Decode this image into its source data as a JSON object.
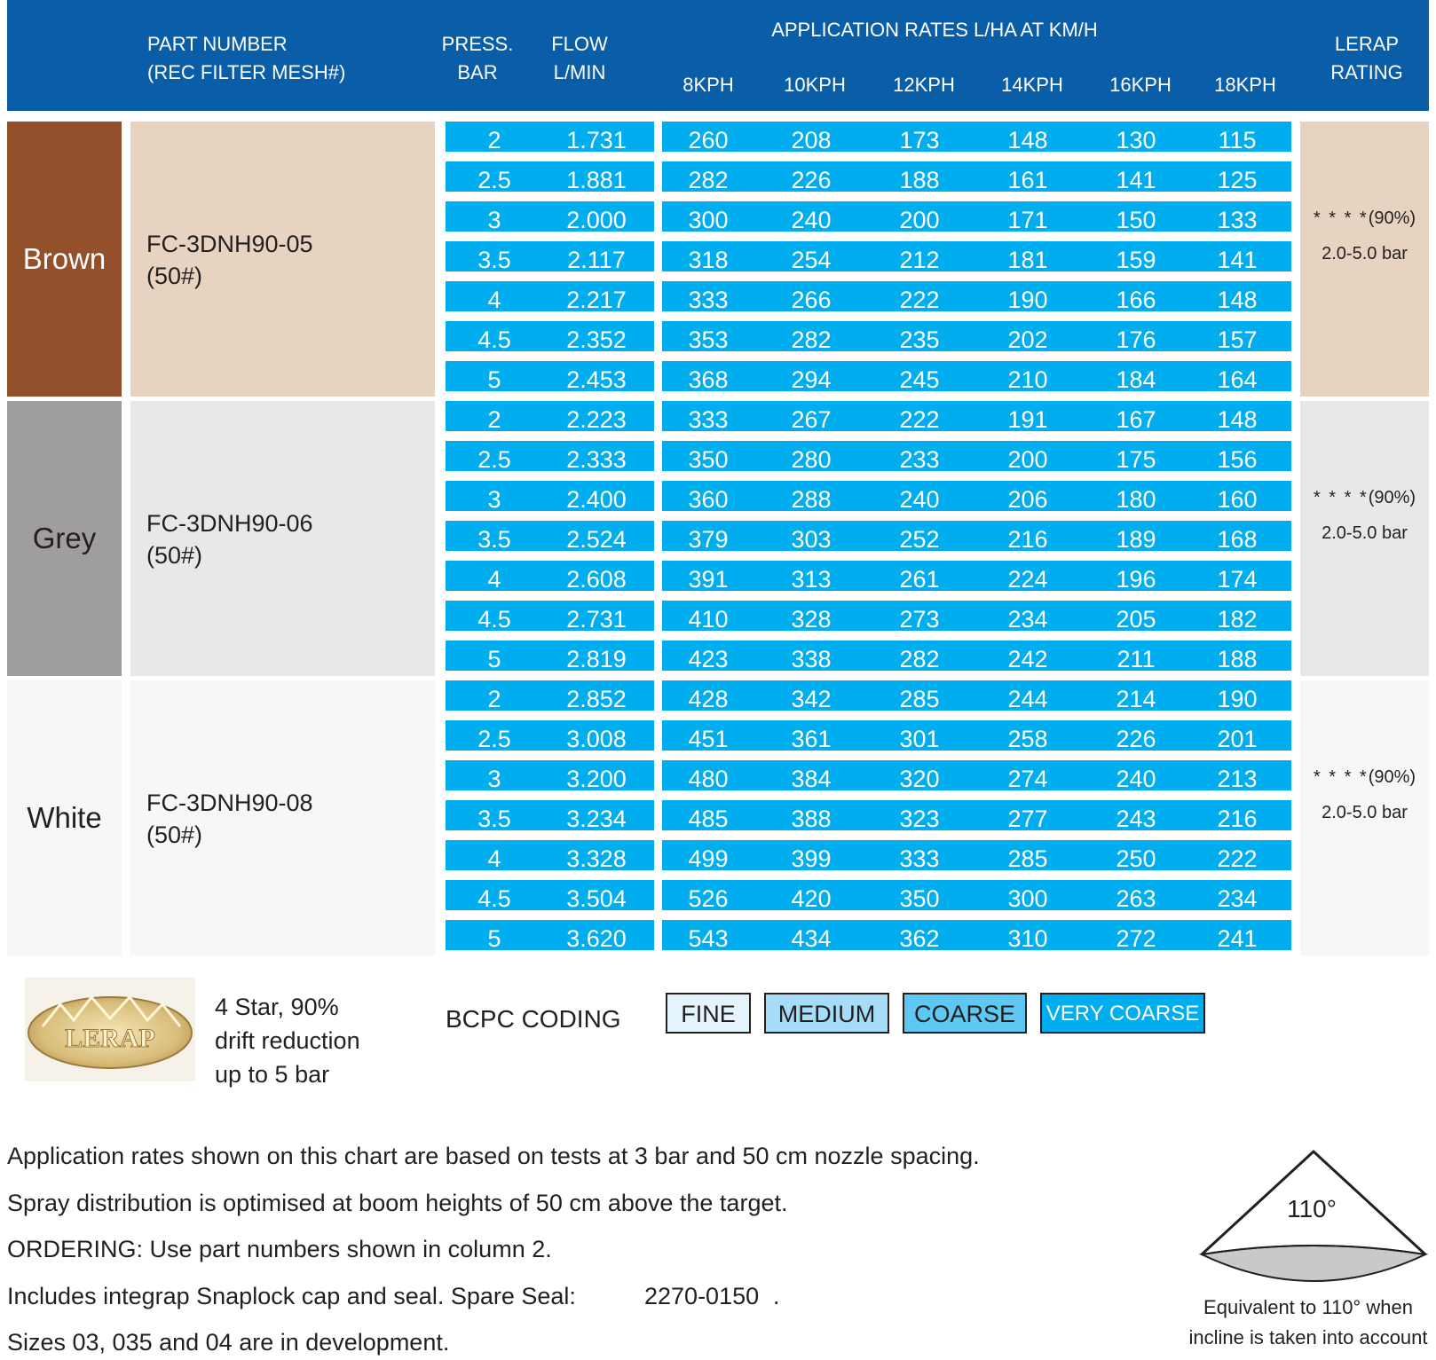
{
  "header": {
    "part_number": "PART NUMBER\n(REC FILTER MESH#)",
    "press": "PRESS.\nBAR",
    "flow": "FLOW\nL/MIN",
    "app_rates": "APPLICATION RATES L/HA AT KM/H",
    "speeds": [
      "8KPH",
      "10KPH",
      "12KPH",
      "14KPH",
      "16KPH",
      "18KPH"
    ],
    "lerap": "LERAP\nRATING"
  },
  "groups": [
    {
      "color_name": "Brown",
      "color_hex": "#93502a",
      "panel_hex": "#e8d2c0",
      "text_color": "#ffffff",
      "part": "FC-3DNH90-05\n(50#)",
      "lerap_stars": "* * * *",
      "lerap_pct": "(90%)",
      "lerap_range": "2.0-5.0 bar",
      "rows": [
        {
          "press": "2",
          "flow": "1.731",
          "rates": [
            "260",
            "208",
            "173",
            "148",
            "130",
            "115"
          ]
        },
        {
          "press": "2.5",
          "flow": "1.881",
          "rates": [
            "282",
            "226",
            "188",
            "161",
            "141",
            "125"
          ]
        },
        {
          "press": "3",
          "flow": "2.000",
          "rates": [
            "300",
            "240",
            "200",
            "171",
            "150",
            "133"
          ]
        },
        {
          "press": "3.5",
          "flow": "2.117",
          "rates": [
            "318",
            "254",
            "212",
            "181",
            "159",
            "141"
          ]
        },
        {
          "press": "4",
          "flow": "2.217",
          "rates": [
            "333",
            "266",
            "222",
            "190",
            "166",
            "148"
          ]
        },
        {
          "press": "4.5",
          "flow": "2.352",
          "rates": [
            "353",
            "282",
            "235",
            "202",
            "176",
            "157"
          ]
        },
        {
          "press": "5",
          "flow": "2.453",
          "rates": [
            "368",
            "294",
            "245",
            "210",
            "184",
            "164"
          ]
        }
      ]
    },
    {
      "color_name": "Grey",
      "color_hex": "#a09e9c",
      "panel_hex": "#e8e8e8",
      "text_color": "#231f20",
      "part": "FC-3DNH90-06\n(50#)",
      "lerap_stars": "* * * *",
      "lerap_pct": "(90%)",
      "lerap_range": "2.0-5.0 bar",
      "rows": [
        {
          "press": "2",
          "flow": "2.223",
          "rates": [
            "333",
            "267",
            "222",
            "191",
            "167",
            "148"
          ]
        },
        {
          "press": "2.5",
          "flow": "2.333",
          "rates": [
            "350",
            "280",
            "233",
            "200",
            "175",
            "156"
          ]
        },
        {
          "press": "3",
          "flow": "2.400",
          "rates": [
            "360",
            "288",
            "240",
            "206",
            "180",
            "160"
          ]
        },
        {
          "press": "3.5",
          "flow": "2.524",
          "rates": [
            "379",
            "303",
            "252",
            "216",
            "189",
            "168"
          ]
        },
        {
          "press": "4",
          "flow": "2.608",
          "rates": [
            "391",
            "313",
            "261",
            "224",
            "196",
            "174"
          ]
        },
        {
          "press": "4.5",
          "flow": "2.731",
          "rates": [
            "410",
            "328",
            "273",
            "234",
            "205",
            "182"
          ]
        },
        {
          "press": "5",
          "flow": "2.819",
          "rates": [
            "423",
            "338",
            "282",
            "242",
            "211",
            "188"
          ]
        }
      ]
    },
    {
      "color_name": "White",
      "color_hex": "#f7f7f7",
      "panel_hex": "#f7f7f7",
      "text_color": "#231f20",
      "part": "FC-3DNH90-08\n(50#)",
      "lerap_stars": "* * * *",
      "lerap_pct": "(90%)",
      "lerap_range": "2.0-5.0 bar",
      "rows": [
        {
          "press": "2",
          "flow": "2.852",
          "rates": [
            "428",
            "342",
            "285",
            "244",
            "214",
            "190"
          ]
        },
        {
          "press": "2.5",
          "flow": "3.008",
          "rates": [
            "451",
            "361",
            "301",
            "258",
            "226",
            "201"
          ]
        },
        {
          "press": "3",
          "flow": "3.200",
          "rates": [
            "480",
            "384",
            "320",
            "274",
            "240",
            "213"
          ]
        },
        {
          "press": "3.5",
          "flow": "3.234",
          "rates": [
            "485",
            "388",
            "323",
            "277",
            "243",
            "216"
          ]
        },
        {
          "press": "4",
          "flow": "3.328",
          "rates": [
            "499",
            "399",
            "333",
            "285",
            "250",
            "222"
          ]
        },
        {
          "press": "4.5",
          "flow": "3.504",
          "rates": [
            "526",
            "420",
            "350",
            "300",
            "263",
            "234"
          ]
        },
        {
          "press": "5",
          "flow": "3.620",
          "rates": [
            "543",
            "434",
            "362",
            "310",
            "272",
            "241"
          ]
        }
      ]
    }
  ],
  "lerap_badge": {
    "logo_text": "LERAP",
    "description": "4 Star, 90%\ndrift reduction\nup to 5 bar"
  },
  "bcpc": {
    "label": "BCPC CODING",
    "codes": [
      {
        "label": "FINE",
        "bg": "#e3f4fd"
      },
      {
        "label": "MEDIUM",
        "bg": "#a6dcf7"
      },
      {
        "label": "COARSE",
        "bg": "#5ec7f2"
      },
      {
        "label": "VERY COARSE",
        "bg": "#00aeef"
      }
    ]
  },
  "notes": [
    "Application rates shown on this chart are based on tests at 3 bar and 50 cm nozzle spacing.",
    "Spray distribution is optimised at boom heights of 50 cm above the target.",
    "ORDERING: Use part numbers shown in column 2.",
    "Includes integrap Snaplock cap and seal. Spare Seal:",
    "Sizes 03, 035 and 04 are in development."
  ],
  "spare_seal_number": "2270-0150",
  "spray_angle": {
    "label": "110°",
    "caption_line1": "Equivalent to 110° when",
    "caption_line2": "incline is taken into account"
  }
}
